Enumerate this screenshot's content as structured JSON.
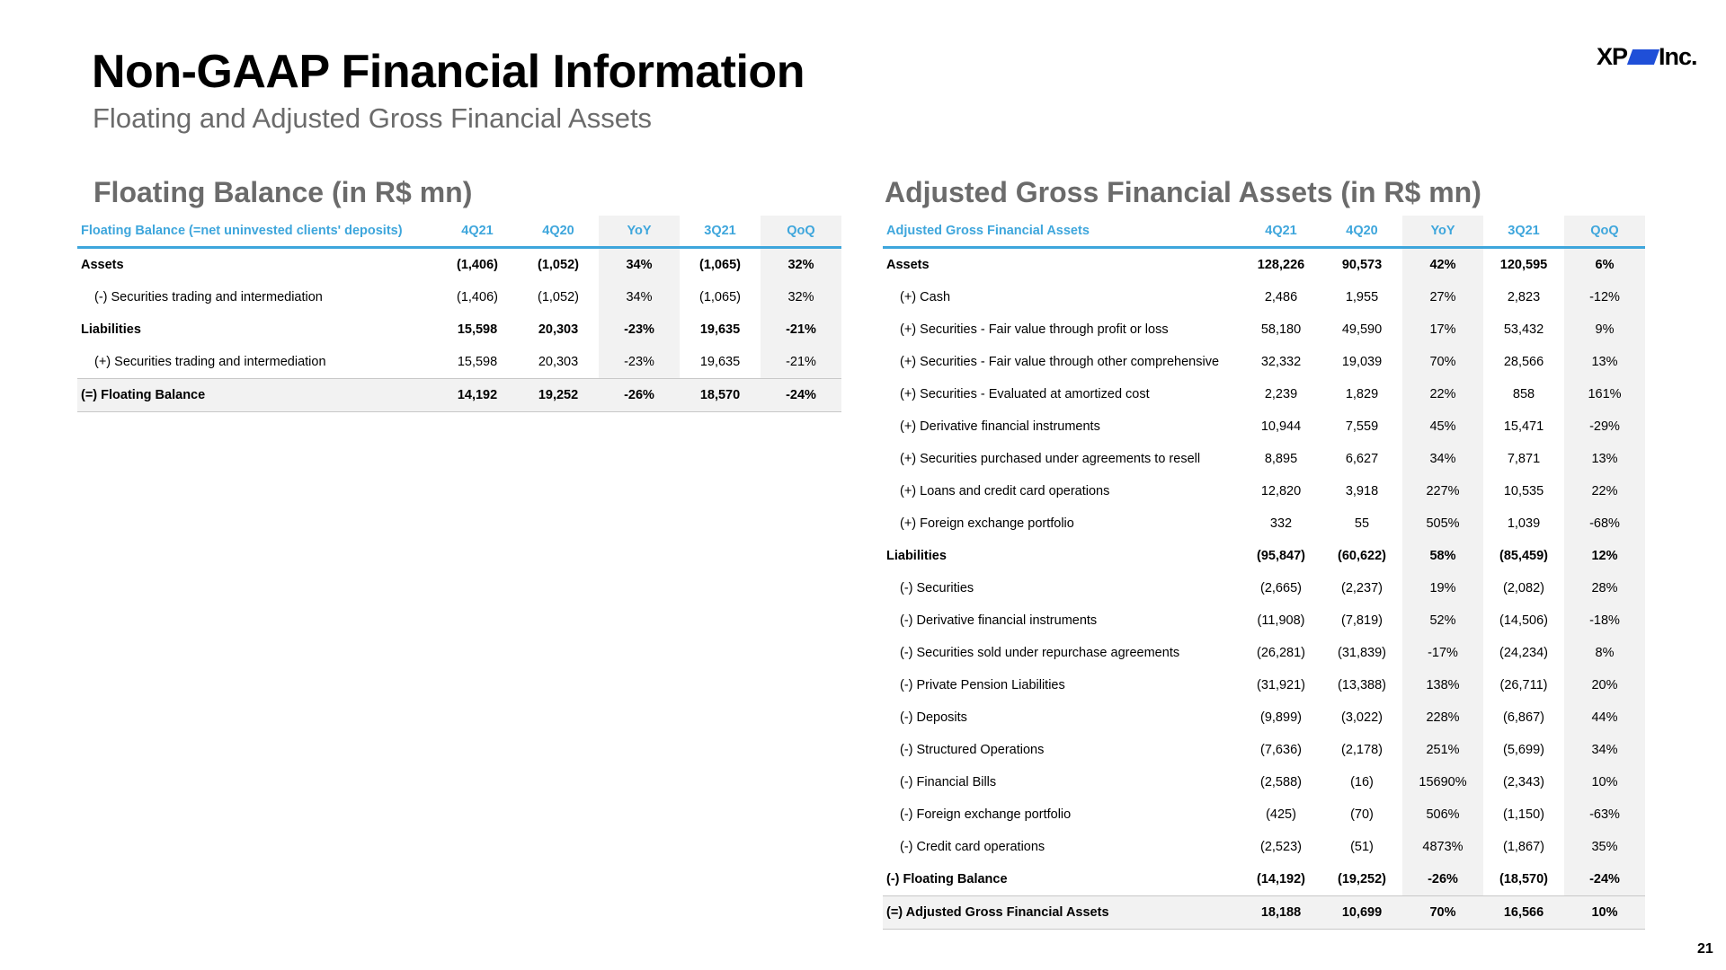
{
  "page": {
    "title": "Non-GAAP Financial Information",
    "subtitle": "Floating and Adjusted Gross Financial Assets",
    "logo_text_left": "XP",
    "logo_text_right": "Inc.",
    "page_number": "21"
  },
  "colors": {
    "header_text": "#3ea6dc",
    "header_rule": "#3ea6dc",
    "shade": "#f2f2f2",
    "section_title": "#6b6b6b",
    "logo_accent": "#1f4fd8"
  },
  "floating_balance": {
    "section_title": "Floating Balance (in R$ mn)",
    "columns": [
      "Floating Balance (=net uninvested clients' deposits)",
      "4Q21",
      "4Q20",
      "YoY",
      "3Q21",
      "QoQ"
    ],
    "rows": [
      {
        "label": "Assets",
        "values": [
          "(1,406)",
          "(1,052)",
          "34%",
          "(1,065)",
          "32%"
        ]
      },
      {
        "label": "(-) Securities trading and intermediation",
        "values": [
          "(1,406)",
          "(1,052)",
          "34%",
          "(1,065)",
          "32%"
        ]
      },
      {
        "label": "Liabilities",
        "values": [
          "15,598",
          "20,303",
          "-23%",
          "19,635",
          "-21%"
        ]
      },
      {
        "label": "(+) Securities trading and intermediation",
        "values": [
          "15,598",
          "20,303",
          "-23%",
          "19,635",
          "-21%"
        ]
      },
      {
        "label": "(=) Floating Balance",
        "values": [
          "14,192",
          "19,252",
          "-26%",
          "18,570",
          "-24%"
        ]
      }
    ]
  },
  "adjusted_gross_financial_assets": {
    "section_title": "Adjusted Gross Financial Assets (in R$ mn)",
    "columns": [
      "Adjusted Gross Financial Assets",
      "4Q21",
      "4Q20",
      "YoY",
      "3Q21",
      "QoQ"
    ],
    "rows": [
      {
        "label": "Assets",
        "values": [
          "128,226",
          "90,573",
          "42%",
          "120,595",
          "6%"
        ]
      },
      {
        "label": "(+) Cash",
        "values": [
          "2,486",
          "1,955",
          "27%",
          "2,823",
          "-12%"
        ]
      },
      {
        "label": "(+) Securities - Fair value through profit or loss",
        "values": [
          "58,180",
          "49,590",
          "17%",
          "53,432",
          "9%"
        ]
      },
      {
        "label": "(+) Securities - Fair value through other comprehensive",
        "values": [
          "32,332",
          "19,039",
          "70%",
          "28,566",
          "13%"
        ]
      },
      {
        "label": "(+) Securities - Evaluated at amortized cost",
        "values": [
          "2,239",
          "1,829",
          "22%",
          "858",
          "161%"
        ]
      },
      {
        "label": "(+) Derivative financial instruments",
        "values": [
          "10,944",
          "7,559",
          "45%",
          "15,471",
          "-29%"
        ]
      },
      {
        "label": "(+) Securities purchased under agreements to resell",
        "values": [
          "8,895",
          "6,627",
          "34%",
          "7,871",
          "13%"
        ]
      },
      {
        "label": "(+) Loans and credit card operations",
        "values": [
          "12,820",
          "3,918",
          "227%",
          "10,535",
          "22%"
        ]
      },
      {
        "label": "(+) Foreign exchange portfolio",
        "values": [
          "332",
          "55",
          "505%",
          "1,039",
          "-68%"
        ]
      },
      {
        "label": "Liabilities",
        "values": [
          "(95,847)",
          "(60,622)",
          "58%",
          "(85,459)",
          "12%"
        ]
      },
      {
        "label": "(-) Securities",
        "values": [
          "(2,665)",
          "(2,237)",
          "19%",
          "(2,082)",
          "28%"
        ]
      },
      {
        "label": "(-) Derivative financial instruments",
        "values": [
          "(11,908)",
          "(7,819)",
          "52%",
          "(14,506)",
          "-18%"
        ]
      },
      {
        "label": "(-) Securities sold under repurchase agreements",
        "values": [
          "(26,281)",
          "(31,839)",
          "-17%",
          "(24,234)",
          "8%"
        ]
      },
      {
        "label": "(-) Private Pension Liabilities",
        "values": [
          "(31,921)",
          "(13,388)",
          "138%",
          "(26,711)",
          "20%"
        ]
      },
      {
        "label": "(-) Deposits",
        "values": [
          "(9,899)",
          "(3,022)",
          "228%",
          "(6,867)",
          "44%"
        ]
      },
      {
        "label": "(-) Structured Operations",
        "values": [
          "(7,636)",
          "(2,178)",
          "251%",
          "(5,699)",
          "34%"
        ]
      },
      {
        "label": "(-) Financial Bills",
        "values": [
          "(2,588)",
          "(16)",
          "15690%",
          "(2,343)",
          "10%"
        ]
      },
      {
        "label": "(-) Foreign exchange portfolio",
        "values": [
          "(425)",
          "(70)",
          "506%",
          "(1,150)",
          "-63%"
        ]
      },
      {
        "label": "(-) Credit card operations",
        "values": [
          "(2,523)",
          "(51)",
          "4873%",
          "(1,867)",
          "35%"
        ]
      },
      {
        "label": "(-) Floating Balance",
        "values": [
          "(14,192)",
          "(19,252)",
          "-26%",
          "(18,570)",
          "-24%"
        ]
      },
      {
        "label": "(=) Adjusted Gross Financial Assets",
        "values": [
          "18,188",
          "10,699",
          "70%",
          "16,566",
          "10%"
        ]
      }
    ]
  }
}
